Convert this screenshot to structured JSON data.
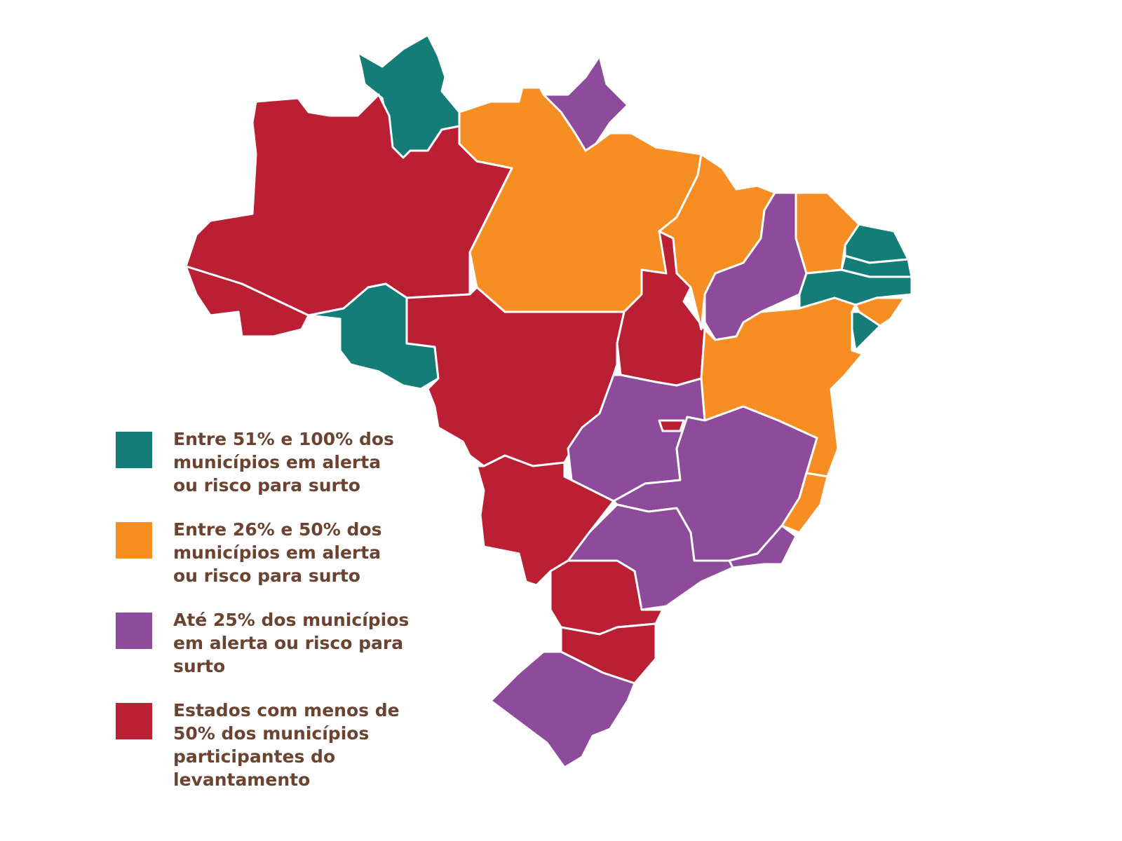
{
  "colors": {
    "high": "#147d78",
    "medium": "#f68e23",
    "low": "#8e4a9b",
    "insufficient": "#bb1f33",
    "text": "#6b4330"
  },
  "legend": [
    {
      "key": "high",
      "label": "Entre 51% e 100% dos\nmunicípios em alerta\nou risco para surto"
    },
    {
      "key": "medium",
      "label": "Entre 26% e 50% dos\nmunicípios em alerta\nou risco para surto"
    },
    {
      "key": "low",
      "label": "Até 25% dos municípios\nem alerta ou risco para\nsurto"
    },
    {
      "key": "insufficient",
      "label": "Estados com menos de\n50% dos municípios\nparticipantes do\nlevantamento"
    }
  ],
  "state_categories": {
    "RR": "high",
    "AP": "low",
    "AM": "insufficient",
    "PA": "medium",
    "AC": "insufficient",
    "RO": "high",
    "MT": "insufficient",
    "TO": "insufficient",
    "MA": "medium",
    "PI": "low",
    "CE": "medium",
    "RN": "high",
    "PB": "high",
    "PE": "high",
    "AL": "medium",
    "SE": "high",
    "BA": "medium",
    "GO": "low",
    "DF": "insufficient",
    "MG": "low",
    "ES": "medium",
    "RJ": "low",
    "SP": "low",
    "MS": "insufficient",
    "PR": "insufficient",
    "SC": "insufficient",
    "RS": "low"
  }
}
